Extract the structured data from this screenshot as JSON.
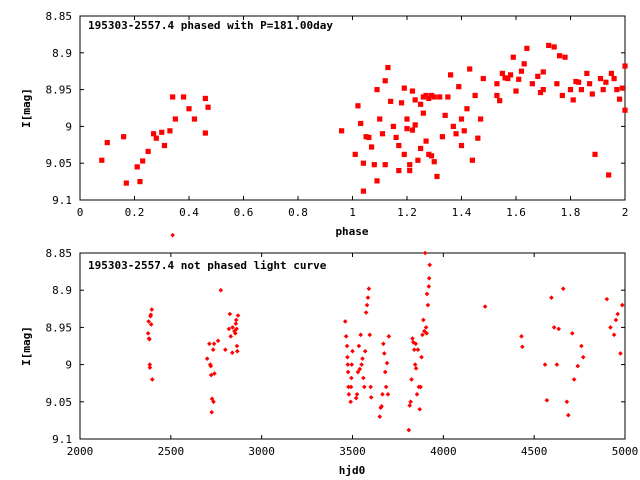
{
  "chart_data": [
    {
      "type": "scatter",
      "title": "195303-2557.4 phased with P=181.00day",
      "xlabel": "phase",
      "ylabel": "I[mag]",
      "xlim": [
        0,
        2
      ],
      "ylim": [
        9.1,
        8.85
      ],
      "x_ticks": [
        "0",
        "0.2",
        "0.4",
        "0.6",
        "0.8",
        "1",
        "1.2",
        "1.4",
        "1.6",
        "1.8",
        "2"
      ],
      "y_ticks": [
        "8.85",
        "8.9",
        "8.95",
        "9",
        "9.05",
        "9.1"
      ],
      "color": "#ff0000",
      "marker": "filled-square",
      "series": [
        {
          "points": [
            [
              0.08,
              9.046
            ],
            [
              0.1,
              9.022
            ],
            [
              0.16,
              9.014
            ],
            [
              0.17,
              9.077
            ],
            [
              0.21,
              9.055
            ],
            [
              0.22,
              9.075
            ],
            [
              0.23,
              9.047
            ],
            [
              0.25,
              9.034
            ],
            [
              0.27,
              9.01
            ],
            [
              0.28,
              9.016
            ],
            [
              0.3,
              9.008
            ],
            [
              0.31,
              9.026
            ],
            [
              0.33,
              9.006
            ],
            [
              0.34,
              8.96
            ],
            [
              0.35,
              8.99
            ],
            [
              0.38,
              8.96
            ],
            [
              0.4,
              8.976
            ],
            [
              0.42,
              8.99
            ],
            [
              0.46,
              8.962
            ],
            [
              0.46,
              9.009
            ],
            [
              0.47,
              8.974
            ],
            [
              0.96,
              9.006
            ],
            [
              1.01,
              9.038
            ],
            [
              1.02,
              8.972
            ],
            [
              1.03,
              8.996
            ],
            [
              1.04,
              9.05
            ],
            [
              1.04,
              9.088
            ],
            [
              1.05,
              9.014
            ],
            [
              1.06,
              9.015
            ],
            [
              1.07,
              9.028
            ],
            [
              1.08,
              9.052
            ],
            [
              1.09,
              8.95
            ],
            [
              1.09,
              9.074
            ],
            [
              1.1,
              8.99
            ],
            [
              1.11,
              9.01
            ],
            [
              1.12,
              8.938
            ],
            [
              1.12,
              9.052
            ],
            [
              1.13,
              8.92
            ],
            [
              1.14,
              8.966
            ],
            [
              1.15,
              9.0
            ],
            [
              1.16,
              9.015
            ],
            [
              1.17,
              9.026
            ],
            [
              1.17,
              9.06
            ],
            [
              1.18,
              8.968
            ],
            [
              1.19,
              8.948
            ],
            [
              1.19,
              9.038
            ],
            [
              1.2,
              8.99
            ],
            [
              1.2,
              9.003
            ],
            [
              1.21,
              9.052
            ],
            [
              1.21,
              9.06
            ],
            [
              1.22,
              8.952
            ],
            [
              1.22,
              9.005
            ],
            [
              1.23,
              8.964
            ],
            [
              1.23,
              8.998
            ],
            [
              1.24,
              9.046
            ],
            [
              1.25,
              8.97
            ],
            [
              1.25,
              9.03
            ],
            [
              1.26,
              8.982
            ],
            [
              1.26,
              8.96
            ],
            [
              1.27,
              9.02
            ],
            [
              1.27,
              8.958
            ],
            [
              1.28,
              8.962
            ],
            [
              1.28,
              9.038
            ],
            [
              1.29,
              8.958
            ],
            [
              1.29,
              9.04
            ],
            [
              1.3,
              9.048
            ],
            [
              1.3,
              8.96
            ],
            [
              1.31,
              9.068
            ],
            [
              1.32,
              8.96
            ],
            [
              1.33,
              9.014
            ],
            [
              1.34,
              8.985
            ],
            [
              1.35,
              8.96
            ],
            [
              1.36,
              8.93
            ],
            [
              1.37,
              9.0
            ],
            [
              1.38,
              9.01
            ],
            [
              1.39,
              8.946
            ],
            [
              1.4,
              8.99
            ],
            [
              1.4,
              9.026
            ],
            [
              1.41,
              9.006
            ],
            [
              1.42,
              8.976
            ],
            [
              1.43,
              8.922
            ],
            [
              1.44,
              9.046
            ],
            [
              1.45,
              8.958
            ],
            [
              1.46,
              9.016
            ],
            [
              1.47,
              8.99
            ],
            [
              1.48,
              8.935
            ],
            [
              1.53,
              8.942
            ],
            [
              1.53,
              8.958
            ],
            [
              1.54,
              8.965
            ],
            [
              1.55,
              8.928
            ],
            [
              1.56,
              8.934
            ],
            [
              1.57,
              8.935
            ],
            [
              1.58,
              8.93
            ],
            [
              1.59,
              8.906
            ],
            [
              1.6,
              8.952
            ],
            [
              1.61,
              8.936
            ],
            [
              1.62,
              8.925
            ],
            [
              1.63,
              8.915
            ],
            [
              1.64,
              8.894
            ],
            [
              1.66,
              8.942
            ],
            [
              1.68,
              8.932
            ],
            [
              1.69,
              8.954
            ],
            [
              1.7,
              8.926
            ],
            [
              1.7,
              8.95
            ],
            [
              1.72,
              8.89
            ],
            [
              1.74,
              8.892
            ],
            [
              1.75,
              8.942
            ],
            [
              1.76,
              8.904
            ],
            [
              1.77,
              8.958
            ],
            [
              1.78,
              8.906
            ],
            [
              1.8,
              8.95
            ],
            [
              1.81,
              8.964
            ],
            [
              1.82,
              8.939
            ],
            [
              1.83,
              8.94
            ],
            [
              1.84,
              8.95
            ],
            [
              1.86,
              8.928
            ],
            [
              1.87,
              8.942
            ],
            [
              1.88,
              8.956
            ],
            [
              1.89,
              9.038
            ],
            [
              1.91,
              8.935
            ],
            [
              1.92,
              8.95
            ],
            [
              1.93,
              8.94
            ],
            [
              1.94,
              9.066
            ],
            [
              1.95,
              8.928
            ],
            [
              1.96,
              8.935
            ],
            [
              1.97,
              8.95
            ],
            [
              1.98,
              8.963
            ],
            [
              1.99,
              8.948
            ],
            [
              2.0,
              8.918
            ],
            [
              2.0,
              8.978
            ]
          ]
        }
      ]
    },
    {
      "type": "scatter",
      "title": "195303-2557.4 not phased light curve",
      "xlabel": "hjd0",
      "ylabel": "I[mag]",
      "xlim": [
        2000,
        5000
      ],
      "ylim": [
        9.1,
        8.85
      ],
      "x_ticks": [
        "2000",
        "2500",
        "3000",
        "3500",
        "4000",
        "4500",
        "5000"
      ],
      "y_ticks": [
        "8.85",
        "8.9",
        "8.95",
        "9",
        "9.05",
        "9.1"
      ],
      "color": "#ff0000",
      "marker": "filled-diamond",
      "series": [
        {
          "points": [
            [
              2375,
              8.958
            ],
            [
              2378,
              8.942
            ],
            [
              2380,
              8.965
            ],
            [
              2382,
              8.966
            ],
            [
              2384,
              9.0
            ],
            [
              2385,
              9.004
            ],
            [
              2388,
              8.935
            ],
            [
              2390,
              8.933
            ],
            [
              2392,
              8.946
            ],
            [
              2395,
              8.926
            ],
            [
              2398,
              9.02
            ],
            [
              2510,
              8.826
            ],
            [
              2700,
              8.992
            ],
            [
              2712,
              8.972
            ],
            [
              2717,
              9.0
            ],
            [
              2720,
              9.002
            ],
            [
              2722,
              9.014
            ],
            [
              2725,
              9.064
            ],
            [
              2727,
              9.046
            ],
            [
              2733,
              8.98
            ],
            [
              2735,
              9.05
            ],
            [
              2738,
              8.972
            ],
            [
              2740,
              9.012
            ],
            [
              2760,
              8.968
            ],
            [
              2775,
              8.9
            ],
            [
              2800,
              8.98
            ],
            [
              2820,
              8.952
            ],
            [
              2825,
              8.932
            ],
            [
              2830,
              8.962
            ],
            [
              2838,
              8.984
            ],
            [
              2840,
              8.95
            ],
            [
              2850,
              8.955
            ],
            [
              2855,
              8.958
            ],
            [
              2858,
              8.945
            ],
            [
              2860,
              8.94
            ],
            [
              2862,
              8.952
            ],
            [
              2864,
              8.975
            ],
            [
              2866,
              8.982
            ],
            [
              2870,
              8.934
            ],
            [
              3460,
              8.942
            ],
            [
              3465,
              8.962
            ],
            [
              3470,
              8.975
            ],
            [
              3472,
              8.99
            ],
            [
              3474,
              9.0
            ],
            [
              3476,
              9.01
            ],
            [
              3478,
              9.03
            ],
            [
              3480,
              9.04
            ],
            [
              3490,
              9.05
            ],
            [
              3492,
              9.03
            ],
            [
              3494,
              9.018
            ],
            [
              3496,
              9.0
            ],
            [
              3500,
              8.982
            ],
            [
              3520,
              9.045
            ],
            [
              3525,
              9.04
            ],
            [
              3530,
              9.01
            ],
            [
              3535,
              8.975
            ],
            [
              3540,
              9.006
            ],
            [
              3545,
              8.96
            ],
            [
              3550,
              9.0
            ],
            [
              3555,
              8.992
            ],
            [
              3560,
              9.018
            ],
            [
              3565,
              9.03
            ],
            [
              3570,
              8.982
            ],
            [
              3575,
              8.93
            ],
            [
              3580,
              8.92
            ],
            [
              3585,
              8.91
            ],
            [
              3590,
              8.898
            ],
            [
              3595,
              8.96
            ],
            [
              3600,
              9.03
            ],
            [
              3603,
              9.044
            ],
            [
              3650,
              9.07
            ],
            [
              3655,
              9.058
            ],
            [
              3660,
              9.056
            ],
            [
              3665,
              9.04
            ],
            [
              3670,
              8.972
            ],
            [
              3675,
              8.985
            ],
            [
              3680,
              9.01
            ],
            [
              3685,
              9.03
            ],
            [
              3690,
              8.998
            ],
            [
              3695,
              9.04
            ],
            [
              3700,
              8.962
            ],
            [
              3810,
              9.088
            ],
            [
              3815,
              9.055
            ],
            [
              3820,
              9.05
            ],
            [
              3825,
              9.02
            ],
            [
              3830,
              8.965
            ],
            [
              3835,
              8.97
            ],
            [
              3840,
              8.98
            ],
            [
              3845,
              9.0
            ],
            [
              3848,
              8.972
            ],
            [
              3850,
              9.005
            ],
            [
              3855,
              9.04
            ],
            [
              3860,
              8.98
            ],
            [
              3865,
              9.03
            ],
            [
              3870,
              9.06
            ],
            [
              3875,
              9.03
            ],
            [
              3880,
              8.99
            ],
            [
              3885,
              8.96
            ],
            [
              3890,
              8.94
            ],
            [
              3895,
              8.955
            ],
            [
              3900,
              8.85
            ],
            [
              3905,
              8.95
            ],
            [
              3908,
              8.958
            ],
            [
              3910,
              8.905
            ],
            [
              3915,
              8.92
            ],
            [
              3920,
              8.895
            ],
            [
              3922,
              8.884
            ],
            [
              3925,
              8.866
            ],
            [
              4230,
              8.922
            ],
            [
              4430,
              8.962
            ],
            [
              4435,
              8.976
            ],
            [
              4560,
              9.0
            ],
            [
              4570,
              9.048
            ],
            [
              4595,
              8.91
            ],
            [
              4610,
              8.95
            ],
            [
              4625,
              9.0
            ],
            [
              4635,
              8.952
            ],
            [
              4660,
              8.898
            ],
            [
              4680,
              9.05
            ],
            [
              4688,
              9.068
            ],
            [
              4710,
              8.958
            ],
            [
              4720,
              9.02
            ],
            [
              4740,
              9.002
            ],
            [
              4760,
              8.975
            ],
            [
              4770,
              8.99
            ],
            [
              4900,
              8.912
            ],
            [
              4920,
              8.95
            ],
            [
              4940,
              8.96
            ],
            [
              4950,
              8.94
            ],
            [
              4960,
              8.932
            ],
            [
              4975,
              8.985
            ],
            [
              4985,
              8.92
            ]
          ]
        }
      ]
    }
  ]
}
